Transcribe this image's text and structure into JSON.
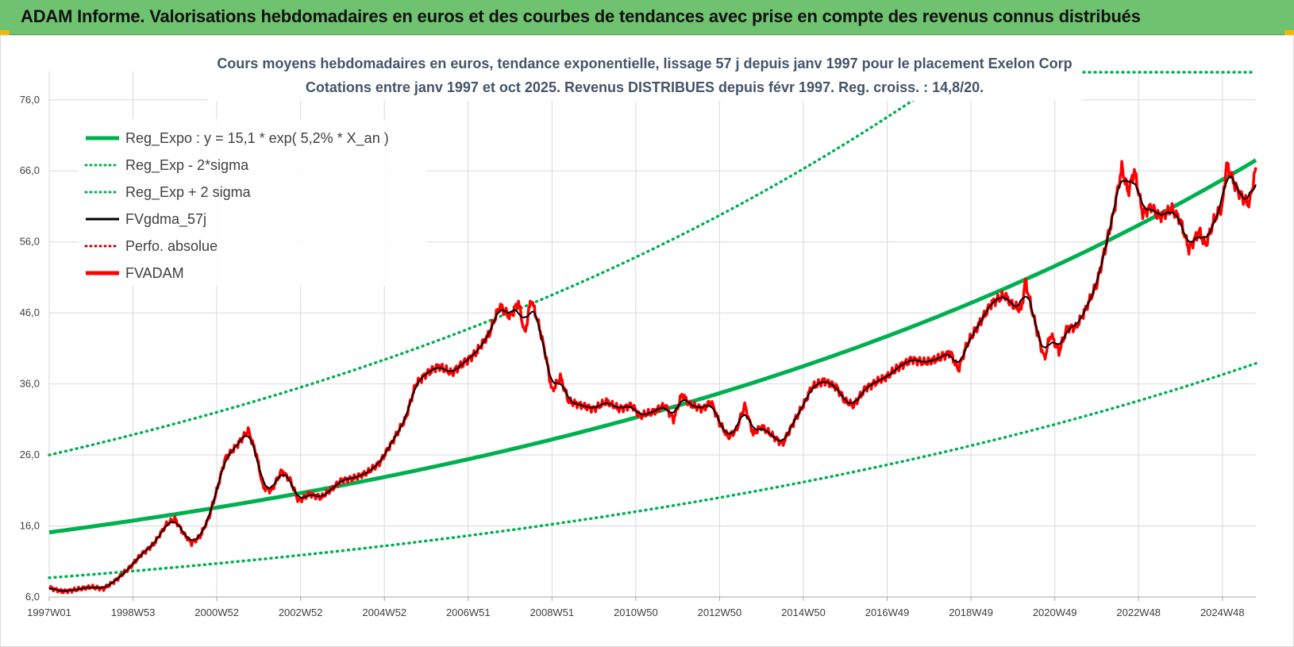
{
  "header": {
    "title": "ADAM Informe. Valorisations hebdomadaires en euros et des courbes de tendances avec prise en compte des revenus connus distribués"
  },
  "colors": {
    "banner": "#6fc26f",
    "accent": "#f2b705",
    "reg_expo": "#00b050",
    "fvgdma": "#000000",
    "perfo": "#c00000",
    "fvadam": "#ff0000"
  },
  "chart_data": {
    "type": "line",
    "title_lines": [
      "Cours moyens hebdomadaires en euros, tendance exponentielle, lissage 57 j depuis janv 1997 pour le placement Exelon Corp",
      "Cotations entre janv 1997 et oct 2025. Revenus DISTRIBUES depuis févr 1997. Reg. croiss. : 14,8/20."
    ],
    "xlabel": "",
    "ylabel": "",
    "xlim": [
      1997.0,
      2025.8
    ],
    "ylim": [
      6,
      80
    ],
    "grid": true,
    "legend_position": "top-left",
    "x_ticks": [
      {
        "label": "1997W01",
        "x": 1997.0
      },
      {
        "label": "1998W53",
        "x": 1999.0
      },
      {
        "label": "2000W52",
        "x": 2001.0
      },
      {
        "label": "2002W52",
        "x": 2003.0
      },
      {
        "label": "2004W52",
        "x": 2005.0
      },
      {
        "label": "2006W51",
        "x": 2007.0
      },
      {
        "label": "2008W51",
        "x": 2009.0
      },
      {
        "label": "2010W50",
        "x": 2011.0
      },
      {
        "label": "2012W50",
        "x": 2013.0
      },
      {
        "label": "2014W50",
        "x": 2015.0
      },
      {
        "label": "2016W49",
        "x": 2017.0
      },
      {
        "label": "2018W49",
        "x": 2019.0
      },
      {
        "label": "2020W49",
        "x": 2021.0
      },
      {
        "label": "2022W48",
        "x": 2023.0
      },
      {
        "label": "2024W48",
        "x": 2025.0
      }
    ],
    "y_ticks": [
      "6,0",
      "16,0",
      "26,0",
      "36,0",
      "46,0",
      "56,0",
      "66,0",
      "76,0"
    ],
    "y_tick_values": [
      6,
      16,
      26,
      36,
      46,
      56,
      66,
      76
    ],
    "legend": [
      {
        "name": "Reg_Expo : y = 15,1 * exp( 5,2% *  X_an )",
        "style": "solid-thick",
        "color": "#00b050"
      },
      {
        "name": "Reg_Exp - 2*sigma",
        "style": "dotted",
        "color": "#00b050"
      },
      {
        "name": "Reg_Exp + 2 sigma",
        "style": "dotted",
        "color": "#00b050"
      },
      {
        "name": "FVgdma_57j",
        "style": "solid",
        "color": "#000000"
      },
      {
        "name": "Perfo. absolue",
        "style": "dotted",
        "color": "#c00000"
      },
      {
        "name": "FVADAM",
        "style": "solid-thick",
        "color": "#ff0000"
      }
    ],
    "trend": {
      "a": 15.1,
      "rate": 0.052,
      "start": 1997.0
    },
    "band_upper": {
      "a": 26.0,
      "rate": 0.052,
      "start": 1997.0
    },
    "band_lower": {
      "a": 8.7,
      "rate": 0.052,
      "start": 1997.0
    },
    "fvadam_points": [
      [
        1997.0,
        7.3
      ],
      [
        1997.3,
        6.8
      ],
      [
        1997.6,
        7.0
      ],
      [
        1998.0,
        7.4
      ],
      [
        1998.3,
        7.2
      ],
      [
        1998.6,
        8.4
      ],
      [
        1998.9,
        10.0
      ],
      [
        1999.2,
        12.0
      ],
      [
        1999.5,
        13.5
      ],
      [
        1999.8,
        16.2
      ],
      [
        2000.0,
        17.0
      ],
      [
        2000.2,
        15.0
      ],
      [
        2000.4,
        13.6
      ],
      [
        2000.6,
        14.5
      ],
      [
        2000.8,
        17.0
      ],
      [
        2001.0,
        21.0
      ],
      [
        2001.2,
        25.5
      ],
      [
        2001.5,
        27.5
      ],
      [
        2001.75,
        29.5
      ],
      [
        2001.95,
        26.0
      ],
      [
        2002.1,
        21.5
      ],
      [
        2002.3,
        21.0
      ],
      [
        2002.55,
        23.8
      ],
      [
        2002.75,
        22.5
      ],
      [
        2002.95,
        19.5
      ],
      [
        2003.2,
        20.5
      ],
      [
        2003.5,
        20.0
      ],
      [
        2003.8,
        21.5
      ],
      [
        2004.0,
        22.5
      ],
      [
        2004.3,
        22.8
      ],
      [
        2004.6,
        23.5
      ],
      [
        2004.9,
        25.0
      ],
      [
        2005.2,
        28.0
      ],
      [
        2005.5,
        31.0
      ],
      [
        2005.75,
        36.0
      ],
      [
        2006.0,
        37.5
      ],
      [
        2006.3,
        38.5
      ],
      [
        2006.6,
        37.5
      ],
      [
        2006.9,
        39.0
      ],
      [
        2007.2,
        40.5
      ],
      [
        2007.5,
        43.0
      ],
      [
        2007.75,
        47.0
      ],
      [
        2008.0,
        45.5
      ],
      [
        2008.2,
        47.5
      ],
      [
        2008.35,
        43.0
      ],
      [
        2008.5,
        48.0
      ],
      [
        2008.7,
        44.0
      ],
      [
        2008.85,
        40.0
      ],
      [
        2009.0,
        35.0
      ],
      [
        2009.2,
        37.0
      ],
      [
        2009.4,
        33.5
      ],
      [
        2009.7,
        33.0
      ],
      [
        2010.0,
        32.5
      ],
      [
        2010.3,
        33.5
      ],
      [
        2010.6,
        32.5
      ],
      [
        2010.9,
        33.0
      ],
      [
        2011.1,
        31.5
      ],
      [
        2011.4,
        32.0
      ],
      [
        2011.7,
        33.0
      ],
      [
        2011.9,
        31.0
      ],
      [
        2012.1,
        34.5
      ],
      [
        2012.3,
        33.0
      ],
      [
        2012.6,
        32.5
      ],
      [
        2012.8,
        33.5
      ],
      [
        2013.0,
        30.5
      ],
      [
        2013.2,
        28.5
      ],
      [
        2013.4,
        29.5
      ],
      [
        2013.6,
        33.0
      ],
      [
        2013.8,
        29.0
      ],
      [
        2014.0,
        30.0
      ],
      [
        2014.3,
        28.5
      ],
      [
        2014.5,
        27.5
      ],
      [
        2014.8,
        31.0
      ],
      [
        2015.0,
        33.0
      ],
      [
        2015.2,
        35.5
      ],
      [
        2015.5,
        36.5
      ],
      [
        2015.8,
        35.5
      ],
      [
        2016.0,
        33.5
      ],
      [
        2016.2,
        33.0
      ],
      [
        2016.5,
        35.5
      ],
      [
        2016.8,
        36.5
      ],
      [
        2017.0,
        37.0
      ],
      [
        2017.3,
        38.5
      ],
      [
        2017.6,
        39.5
      ],
      [
        2017.9,
        39.0
      ],
      [
        2018.2,
        39.5
      ],
      [
        2018.5,
        40.5
      ],
      [
        2018.7,
        38.0
      ],
      [
        2018.9,
        41.5
      ],
      [
        2019.2,
        44.5
      ],
      [
        2019.5,
        47.5
      ],
      [
        2019.8,
        48.5
      ],
      [
        2020.0,
        47.0
      ],
      [
        2020.2,
        46.5
      ],
      [
        2020.3,
        50.5
      ],
      [
        2020.45,
        46.5
      ],
      [
        2020.6,
        43.0
      ],
      [
        2020.75,
        39.5
      ],
      [
        2020.9,
        43.0
      ],
      [
        2021.1,
        40.5
      ],
      [
        2021.3,
        44.0
      ],
      [
        2021.5,
        44.0
      ],
      [
        2021.7,
        46.0
      ],
      [
        2022.0,
        50.0
      ],
      [
        2022.2,
        55.0
      ],
      [
        2022.4,
        60.0
      ],
      [
        2022.6,
        66.5
      ],
      [
        2022.75,
        63.0
      ],
      [
        2022.9,
        66.0
      ],
      [
        2023.1,
        60.0
      ],
      [
        2023.3,
        61.0
      ],
      [
        2023.5,
        59.5
      ],
      [
        2023.8,
        60.5
      ],
      [
        2024.0,
        59.0
      ],
      [
        2024.2,
        55.0
      ],
      [
        2024.45,
        57.5
      ],
      [
        2024.6,
        55.5
      ],
      [
        2024.8,
        59.0
      ],
      [
        2025.0,
        61.0
      ],
      [
        2025.1,
        67.0
      ],
      [
        2025.3,
        64.0
      ],
      [
        2025.5,
        62.0
      ],
      [
        2025.65,
        61.5
      ],
      [
        2025.8,
        66.5
      ]
    ]
  }
}
